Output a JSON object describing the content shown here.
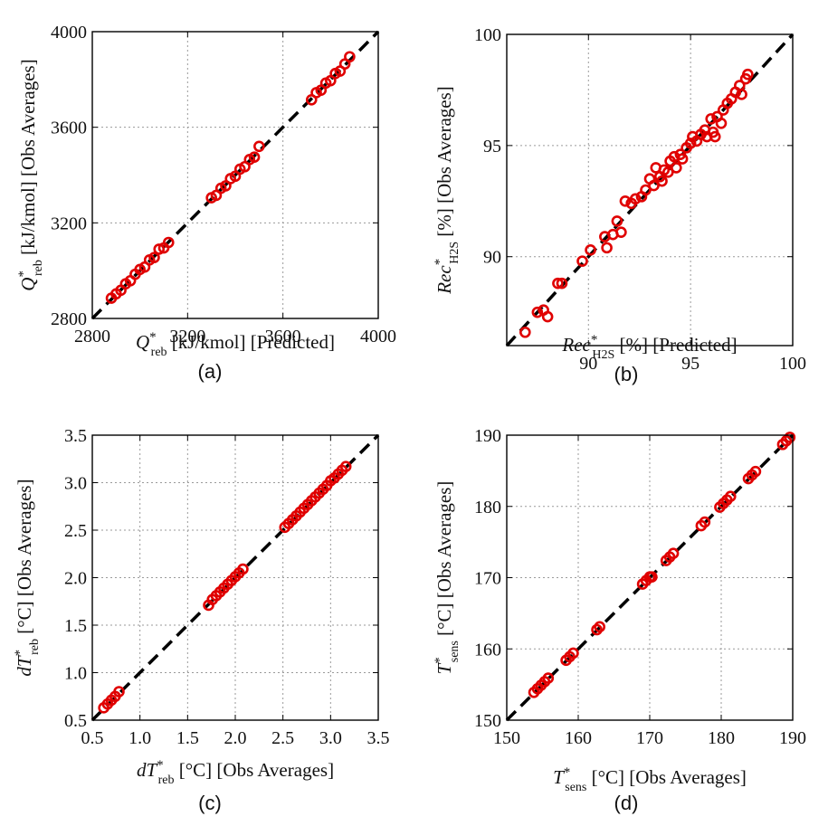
{
  "chart_data": [
    {
      "type": "scatter",
      "panel": "(a)",
      "xlabel": "Q*reb [kJ/kmol] [Predicted]",
      "ylabel": "Q*reb [kJ/kmol] [Obs Averages]",
      "xlabel_parts": {
        "main": "Q",
        "sup": "*",
        "sub": "reb",
        "rest": " [kJ/kmol] [Predicted]"
      },
      "ylabel_parts": {
        "main": "Q",
        "sup": "*",
        "sub": "reb",
        "rest": " [kJ/kmol] [Obs Averages]"
      },
      "xlim": [
        2800,
        4000
      ],
      "ylim": [
        2800,
        4000
      ],
      "xticks": [
        2800,
        3200,
        3600,
        4000
      ],
      "yticks": [
        2800,
        3200,
        3600,
        4000
      ],
      "xtick_labels": [
        "2800",
        "3200",
        "3600",
        "4000"
      ],
      "ytick_labels": [
        "2800",
        "3200",
        "3600",
        "4000"
      ],
      "grid": true,
      "reference_line": "y = x",
      "points": [
        [
          2880,
          2885
        ],
        [
          2900,
          2903
        ],
        [
          2920,
          2918
        ],
        [
          2940,
          2945
        ],
        [
          2960,
          2958
        ],
        [
          2980,
          2985
        ],
        [
          3000,
          3005
        ],
        [
          3020,
          3015
        ],
        [
          3040,
          3045
        ],
        [
          3060,
          3055
        ],
        [
          3080,
          3090
        ],
        [
          3100,
          3095
        ],
        [
          3120,
          3118
        ],
        [
          3300,
          3305
        ],
        [
          3320,
          3315
        ],
        [
          3340,
          3345
        ],
        [
          3360,
          3355
        ],
        [
          3380,
          3385
        ],
        [
          3400,
          3395
        ],
        [
          3420,
          3425
        ],
        [
          3440,
          3435
        ],
        [
          3460,
          3465
        ],
        [
          3480,
          3475
        ],
        [
          3500,
          3520
        ],
        [
          3720,
          3715
        ],
        [
          3740,
          3745
        ],
        [
          3760,
          3755
        ],
        [
          3780,
          3785
        ],
        [
          3800,
          3795
        ],
        [
          3820,
          3825
        ],
        [
          3840,
          3835
        ],
        [
          3860,
          3865
        ],
        [
          3880,
          3895
        ]
      ]
    },
    {
      "type": "scatter",
      "panel": "(b)",
      "xlabel": "Rec*H2S [%] [Predicted]",
      "ylabel": "Rec*H2S [%] [Obs Averages]",
      "xlabel_parts": {
        "main": "Rec",
        "sup": "*",
        "sub": "H2S",
        "rest": " [%] [Predicted]"
      },
      "ylabel_parts": {
        "main": "Rec",
        "sup": "*",
        "sub": "H2S",
        "rest": " [%] [Obs Averages]"
      },
      "xlim": [
        86,
        100
      ],
      "ylim": [
        86,
        100
      ],
      "xticks": [
        90,
        95,
        100
      ],
      "yticks": [
        90,
        95,
        100
      ],
      "xtick_labels": [
        "90",
        "95",
        "100"
      ],
      "ytick_labels": [
        "90",
        "95",
        "100"
      ],
      "grid": true,
      "reference_line": "y = x",
      "points": [
        [
          86.9,
          86.6
        ],
        [
          87.5,
          87.5
        ],
        [
          87.8,
          87.6
        ],
        [
          88.0,
          87.3
        ],
        [
          88.5,
          88.8
        ],
        [
          88.7,
          88.8
        ],
        [
          89.7,
          89.8
        ],
        [
          90.1,
          90.3
        ],
        [
          90.8,
          90.9
        ],
        [
          90.9,
          90.4
        ],
        [
          91.2,
          91.0
        ],
        [
          91.4,
          91.6
        ],
        [
          91.6,
          91.1
        ],
        [
          91.8,
          92.5
        ],
        [
          92.1,
          92.4
        ],
        [
          92.3,
          92.6
        ],
        [
          92.6,
          92.7
        ],
        [
          92.8,
          93.0
        ],
        [
          93.0,
          93.5
        ],
        [
          93.2,
          93.2
        ],
        [
          93.3,
          94.0
        ],
        [
          93.5,
          93.6
        ],
        [
          93.6,
          93.4
        ],
        [
          93.7,
          93.9
        ],
        [
          93.9,
          93.8
        ],
        [
          94.0,
          94.3
        ],
        [
          94.2,
          94.5
        ],
        [
          94.3,
          94.0
        ],
        [
          94.5,
          94.6
        ],
        [
          94.6,
          94.4
        ],
        [
          94.8,
          94.9
        ],
        [
          95.0,
          95.1
        ],
        [
          95.1,
          95.4
        ],
        [
          95.3,
          95.2
        ],
        [
          95.5,
          95.5
        ],
        [
          95.7,
          95.7
        ],
        [
          95.8,
          95.4
        ],
        [
          96.0,
          96.2
        ],
        [
          96.1,
          95.6
        ],
        [
          96.2,
          95.4
        ],
        [
          96.3,
          96.3
        ],
        [
          96.5,
          96.0
        ],
        [
          96.6,
          96.6
        ],
        [
          96.8,
          96.9
        ],
        [
          97.0,
          97.1
        ],
        [
          97.2,
          97.4
        ],
        [
          97.4,
          97.7
        ],
        [
          97.5,
          97.3
        ],
        [
          97.7,
          98.0
        ],
        [
          97.8,
          98.2
        ]
      ]
    },
    {
      "type": "scatter",
      "panel": "(c)",
      "xlabel": "dT*reb [°C] [Obs Averages]",
      "ylabel": "dT*reb [°C] [Obs Averages]",
      "xlabel_parts": {
        "main": "dT",
        "sup": "*",
        "sub": "reb",
        "rest": " [°C] [Obs Averages]"
      },
      "ylabel_parts": {
        "main": "dT",
        "sup": "*",
        "sub": "reb",
        "rest": " [°C] [Obs Averages]"
      },
      "xlim": [
        0.5,
        3.5
      ],
      "ylim": [
        0.5,
        3.5
      ],
      "xticks": [
        0.5,
        1.0,
        1.5,
        2.0,
        2.5,
        3.0,
        3.5
      ],
      "yticks": [
        0.5,
        1.0,
        1.5,
        2.0,
        2.5,
        3.0,
        3.5
      ],
      "xtick_labels": [
        "0.5",
        "1.0",
        "1.5",
        "2.0",
        "2.5",
        "3.0",
        "3.5"
      ],
      "ytick_labels": [
        "0.5",
        "1.0",
        "1.5",
        "2.0",
        "2.5",
        "3.0",
        "3.5"
      ],
      "grid": true,
      "reference_line": "y = x",
      "points": [
        [
          0.62,
          0.63
        ],
        [
          0.66,
          0.67
        ],
        [
          0.7,
          0.71
        ],
        [
          0.74,
          0.75
        ],
        [
          0.78,
          0.8
        ],
        [
          1.72,
          1.71
        ],
        [
          1.76,
          1.77
        ],
        [
          1.8,
          1.81
        ],
        [
          1.84,
          1.85
        ],
        [
          1.88,
          1.89
        ],
        [
          1.92,
          1.93
        ],
        [
          1.96,
          1.97
        ],
        [
          2.0,
          2.01
        ],
        [
          2.04,
          2.05
        ],
        [
          2.08,
          2.09
        ],
        [
          2.52,
          2.53
        ],
        [
          2.56,
          2.57
        ],
        [
          2.6,
          2.61
        ],
        [
          2.64,
          2.65
        ],
        [
          2.68,
          2.69
        ],
        [
          2.72,
          2.73
        ],
        [
          2.76,
          2.77
        ],
        [
          2.8,
          2.81
        ],
        [
          2.84,
          2.85
        ],
        [
          2.88,
          2.89
        ],
        [
          2.92,
          2.93
        ],
        [
          2.96,
          2.97
        ],
        [
          3.0,
          3.02
        ],
        [
          3.04,
          3.05
        ],
        [
          3.08,
          3.09
        ],
        [
          3.12,
          3.13
        ],
        [
          3.16,
          3.17
        ]
      ]
    },
    {
      "type": "scatter",
      "panel": "(d)",
      "xlabel": "T*sens [°C] [Obs Averages]",
      "ylabel": "T*sens [°C] [Obs Averages]",
      "xlabel_parts": {
        "main": "T",
        "sup": "*",
        "sub": "sens",
        "rest": " [°C] [Obs Averages]"
      },
      "ylabel_parts": {
        "main": "T",
        "sup": "*",
        "sub": "sens",
        "rest": " [°C] [Obs Averages]"
      },
      "xlim": [
        150,
        190
      ],
      "ylim": [
        150,
        190
      ],
      "xticks": [
        150,
        160,
        170,
        180,
        190
      ],
      "yticks": [
        150,
        160,
        170,
        180,
        190
      ],
      "xtick_labels": [
        "150",
        "160",
        "170",
        "180",
        "190"
      ],
      "ytick_labels": [
        "150",
        "160",
        "170",
        "180",
        "190"
      ],
      "grid": true,
      "reference_line": "y = x",
      "points": [
        [
          153.8,
          153.9
        ],
        [
          154.3,
          154.4
        ],
        [
          154.8,
          154.9
        ],
        [
          155.3,
          155.4
        ],
        [
          155.8,
          155.9
        ],
        [
          158.3,
          158.4
        ],
        [
          158.8,
          158.9
        ],
        [
          159.3,
          159.4
        ],
        [
          162.6,
          162.7
        ],
        [
          163.0,
          163.1
        ],
        [
          169.0,
          169.1
        ],
        [
          169.5,
          169.6
        ],
        [
          170.0,
          170.1
        ],
        [
          170.3,
          170.1
        ],
        [
          172.3,
          172.4
        ],
        [
          172.8,
          172.9
        ],
        [
          173.3,
          173.4
        ],
        [
          177.2,
          177.3
        ],
        [
          177.7,
          177.8
        ],
        [
          179.8,
          179.9
        ],
        [
          180.3,
          180.4
        ],
        [
          180.8,
          180.9
        ],
        [
          181.3,
          181.4
        ],
        [
          183.8,
          183.9
        ],
        [
          184.3,
          184.4
        ],
        [
          184.8,
          184.9
        ],
        [
          188.6,
          188.7
        ],
        [
          189.1,
          189.2
        ],
        [
          189.6,
          189.7
        ]
      ]
    }
  ],
  "captions": [
    "(a)",
    "(b)",
    "(c)",
    "(d)"
  ],
  "colors": {
    "points": "#e00000",
    "reference_line": "#000000",
    "grid": "#9a9a9a"
  }
}
